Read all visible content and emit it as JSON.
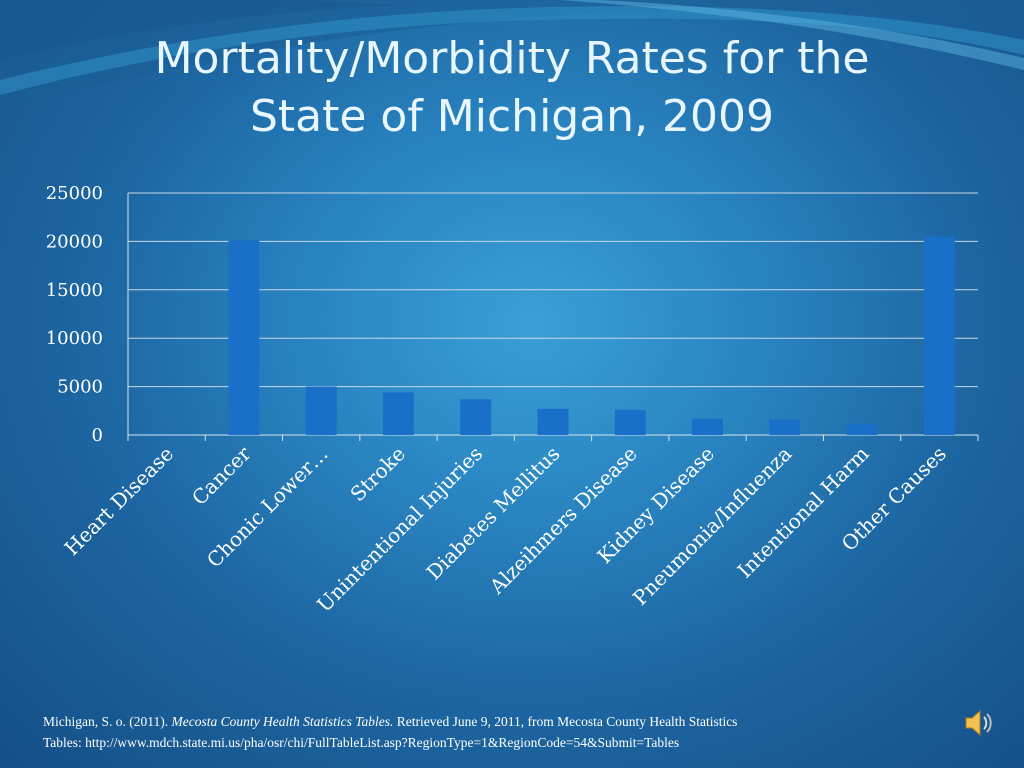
{
  "slide": {
    "title_line1": "Mortality/Morbidity Rates for the",
    "title_line2": "State of Michigan, 2009"
  },
  "chart_data": {
    "type": "bar",
    "title": "",
    "xlabel": "",
    "ylabel": "",
    "ylim": [
      0,
      25000
    ],
    "yticks": [
      "0",
      "5000",
      "10000",
      "15000",
      "20000",
      "25000"
    ],
    "grid": true,
    "bar_color": "#1a6fc9",
    "categories": [
      "Heart Disease",
      "Cancer",
      "Chonic Lower…",
      "Stroke",
      "Unintentional Injuries",
      "Diabetes Mellitus",
      "Alzeihmers Disease",
      "Kidney Disease",
      "Pneumonia/Influenza",
      "Intentional Harm",
      "Other Causes"
    ],
    "values": [
      0,
      20100,
      5000,
      4400,
      3700,
      2700,
      2600,
      1700,
      1600,
      1150,
      20500
    ]
  },
  "citation": {
    "author": "Michigan, S. o. (2011).",
    "title_italic": "Mecosta County Health Statistics Tables.",
    "rest_line1": "Retrieved June 9, 2011, from Mecosta County Health Statistics",
    "line2": "Tables: http://www.mdch.state.mi.us/pha/osr/chi/FullTableList.asp?RegionType=1&RegionCode=54&Submit=Tables"
  },
  "controls": {
    "audio_icon": "speaker-icon"
  }
}
